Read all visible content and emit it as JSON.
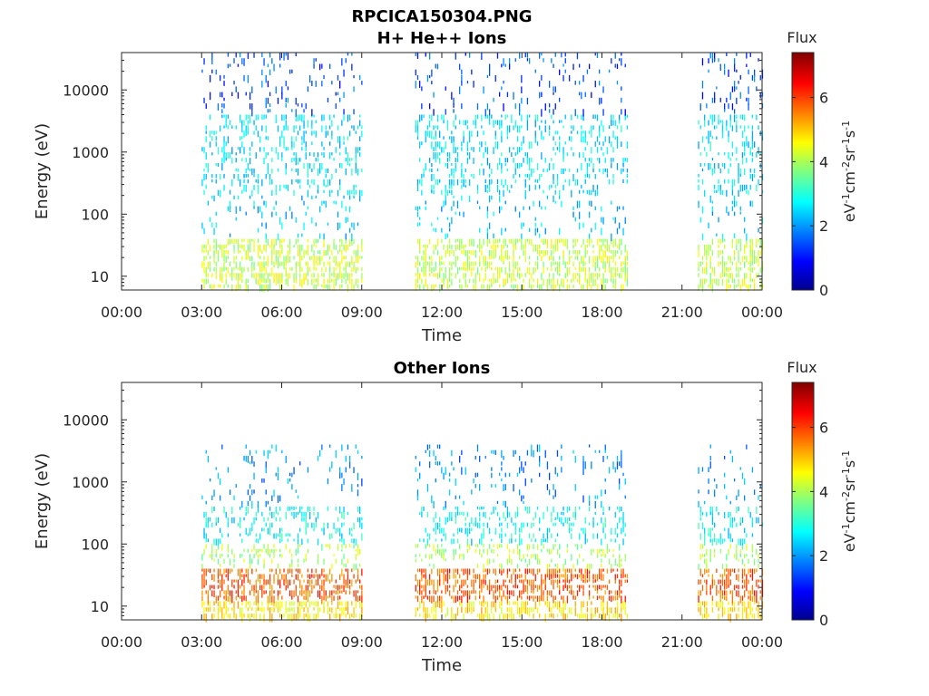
{
  "figure_title": "RPCICA150304.PNG",
  "colorbar": {
    "title": "Flux",
    "unit_parts": [
      "eV",
      "-1",
      "cm",
      "-2",
      "sr",
      "-1",
      "s",
      "-1"
    ],
    "ticks": [
      "0",
      "2",
      "4",
      "6"
    ],
    "range": [
      0,
      7.4
    ],
    "colormap": "jet"
  },
  "chart_data": [
    {
      "type": "heatmap",
      "title": "H+ He++ Ions",
      "xlabel": "Time",
      "ylabel": "Energy (eV)",
      "x_ticks": [
        "00:00",
        "03:00",
        "06:00",
        "09:00",
        "12:00",
        "15:00",
        "18:00",
        "21:00",
        "00:00"
      ],
      "xlim_hours": [
        0,
        24
      ],
      "y_scale": "log",
      "y_ticks": [
        "10",
        "100",
        "1000",
        "10000"
      ],
      "ylim": [
        6,
        40000
      ],
      "data_segments_hours": [
        [
          3.0,
          9.0
        ],
        [
          11.0,
          19.0
        ],
        [
          21.6,
          24.0
        ]
      ],
      "flux_profile": [
        {
          "energy_range_eV": [
            6,
            40
          ],
          "flux": 4.2
        },
        {
          "energy_range_eV": [
            40,
            200
          ],
          "flux": 2.4
        },
        {
          "energy_range_eV": [
            200,
            4000
          ],
          "flux": 2.6
        },
        {
          "energy_range_eV": [
            4000,
            40000
          ],
          "flux": 1.5
        }
      ]
    },
    {
      "type": "heatmap",
      "title": "Other Ions",
      "xlabel": "Time",
      "ylabel": "Energy (eV)",
      "x_ticks": [
        "00:00",
        "03:00",
        "06:00",
        "09:00",
        "12:00",
        "15:00",
        "18:00",
        "21:00",
        "00:00"
      ],
      "xlim_hours": [
        0,
        24
      ],
      "y_scale": "log",
      "y_ticks": [
        "10",
        "100",
        "1000",
        "10000"
      ],
      "ylim": [
        6,
        40000
      ],
      "data_segments_hours": [
        [
          3.0,
          9.0
        ],
        [
          11.0,
          19.0
        ],
        [
          21.6,
          24.0
        ]
      ],
      "flux_profile": [
        {
          "energy_range_eV": [
            6,
            12
          ],
          "flux": 4.8
        },
        {
          "energy_range_eV": [
            12,
            40
          ],
          "flux": 5.8
        },
        {
          "energy_range_eV": [
            40,
            100
          ],
          "flux": 4.0
        },
        {
          "energy_range_eV": [
            100,
            400
          ],
          "flux": 2.8
        },
        {
          "energy_range_eV": [
            400,
            4000
          ],
          "flux": 2.0
        }
      ]
    }
  ]
}
